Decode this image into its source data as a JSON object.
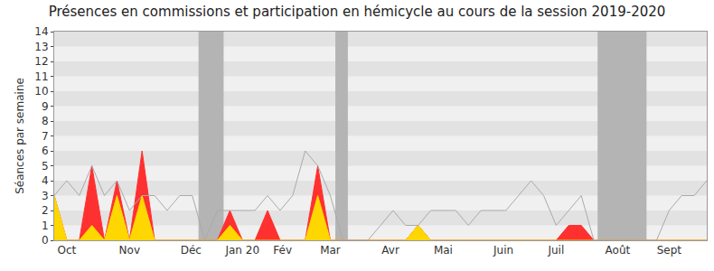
{
  "chart_data": {
    "type": "area",
    "title": "Présences en commissions et participation en hémicycle au cours de la session 2019-2020",
    "y_label": "Séances par semaine",
    "x": [
      0,
      1,
      2,
      3,
      4,
      5,
      6,
      7,
      8,
      9,
      10,
      11,
      12,
      13,
      14,
      15,
      16,
      17,
      18,
      19,
      20,
      21,
      22,
      23,
      24,
      25,
      26,
      27,
      28,
      29,
      30,
      31,
      32,
      33,
      34,
      35,
      36,
      37,
      38,
      39,
      40,
      41,
      42,
      43,
      44,
      45,
      46,
      47,
      48,
      49,
      50,
      51,
      52
    ],
    "xlim": [
      0,
      52
    ],
    "xticks": [
      {
        "value": 1,
        "label": "Oct"
      },
      {
        "value": 6,
        "label": "Nov"
      },
      {
        "value": 10.9,
        "label": "Déc"
      },
      {
        "value": 15,
        "label": "Jan 20"
      },
      {
        "value": 18.2,
        "label": "Fév"
      },
      {
        "value": 22,
        "label": "Mar"
      },
      {
        "value": 26.8,
        "label": "Avr"
      },
      {
        "value": 31,
        "label": "Mai"
      },
      {
        "value": 35.8,
        "label": "Juin"
      },
      {
        "value": 40,
        "label": "Juil"
      },
      {
        "value": 44.9,
        "label": "Août"
      },
      {
        "value": 49,
        "label": "Sept"
      }
    ],
    "ylim": [
      0,
      14
    ],
    "yticks": [
      0,
      1,
      2,
      3,
      4,
      5,
      6,
      7,
      8,
      9,
      10,
      11,
      12,
      13,
      14
    ],
    "grid": true,
    "shaded_ranges": [
      [
        11.5,
        13.5
      ],
      [
        22.4,
        23.4
      ],
      [
        43.3,
        47.2
      ]
    ],
    "series": [
      {
        "type": "area",
        "color": "#ff3030",
        "values": [
          3,
          0,
          0,
          5,
          0,
          4,
          0,
          6,
          0,
          0,
          0,
          0,
          0,
          0,
          2,
          0,
          0,
          2,
          0,
          0,
          0,
          5,
          0,
          0,
          0,
          0,
          0,
          0,
          0,
          1,
          0,
          0,
          0,
          0,
          0,
          0,
          0,
          0,
          0,
          0,
          0,
          1,
          1,
          0,
          0,
          0,
          0,
          0,
          0,
          0,
          0,
          0,
          0
        ]
      },
      {
        "type": "area",
        "color": "#ffd700",
        "values": [
          3,
          0,
          0,
          1,
          0,
          3,
          0,
          3,
          0,
          0,
          0,
          0,
          0,
          0,
          1,
          0,
          0,
          0,
          0,
          0,
          0,
          3,
          0,
          0,
          0,
          0,
          0,
          0,
          0,
          1,
          0,
          0,
          0,
          0,
          0,
          0,
          0,
          0,
          0,
          0,
          0,
          0,
          0,
          0,
          0,
          0,
          0,
          0,
          0,
          0,
          0,
          0,
          0
        ]
      },
      {
        "type": "bar",
        "color": "#7070ff",
        "values": [
          0,
          0,
          0,
          0,
          0,
          0,
          0,
          0,
          0,
          0,
          0,
          0,
          0,
          0,
          1,
          0,
          0,
          0,
          0,
          0,
          0,
          1,
          0,
          0,
          0,
          0,
          0,
          0,
          0,
          0,
          0,
          0,
          0,
          0,
          0,
          0,
          0,
          0,
          0,
          0,
          0,
          0,
          0,
          0,
          0,
          0,
          0,
          0,
          0,
          0,
          0,
          0,
          0
        ]
      },
      {
        "type": "line",
        "color": "#aaaaaa",
        "values": [
          3,
          4,
          3,
          5,
          3,
          4,
          2,
          3,
          3,
          2,
          3,
          3,
          0,
          2,
          2,
          2,
          2,
          3,
          2,
          3,
          6,
          5,
          3,
          0,
          0,
          0,
          1,
          2,
          1,
          1,
          2,
          2,
          2,
          1,
          2,
          2,
          2,
          3,
          4,
          3,
          1,
          2,
          3,
          0,
          0,
          0,
          0,
          0,
          0,
          2,
          3,
          3,
          4
        ]
      }
    ]
  }
}
